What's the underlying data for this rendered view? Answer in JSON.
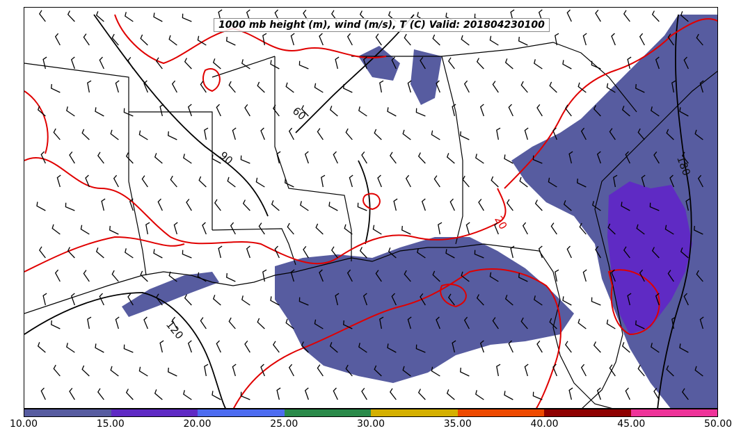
{
  "title": "1000 mb height (m), wind (m/s), T (C) Valid: 201804230100",
  "contour_labels": {
    "h60": "60",
    "h90": "90",
    "h120": "120",
    "h180": "180",
    "t20": "20"
  },
  "colorbar": {
    "ticks": [
      "10.00",
      "15.00",
      "20.00",
      "25.00",
      "30.00",
      "35.00",
      "40.00",
      "45.00",
      "50.00"
    ],
    "colors": [
      "#575ca0",
      "#5f2ac4",
      "#4d6cf0",
      "#2a8a4a",
      "#d4b000",
      "#ee4a00",
      "#8e0000",
      "#ee3399"
    ]
  },
  "colors": {
    "height_contour": "#000000",
    "temp_contour": "#e00000",
    "reflectivity_fill": "#575ca0",
    "reflectivity_fill_strong": "#5f2ac4"
  }
}
